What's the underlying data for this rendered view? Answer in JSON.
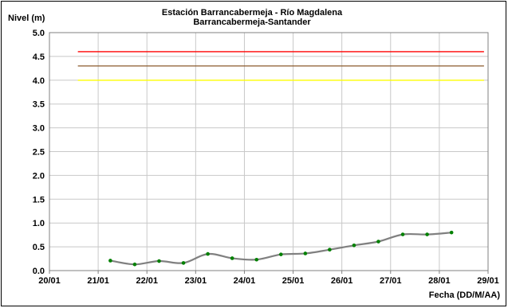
{
  "chart_data": {
    "type": "line",
    "title": "Estación Barrancabermeja - Río Magdalena",
    "subtitle": "Barrancabermeja-Santander",
    "ylabel": "Nivel (m)",
    "xlabel": "Fecha (DD/M/AA)",
    "ylim": [
      0,
      5
    ],
    "yticks": [
      "0.0",
      "0.5",
      "1.0",
      "1.5",
      "2.0",
      "2.5",
      "3.0",
      "3.5",
      "4.0",
      "4.5",
      "5.0"
    ],
    "xlim": [
      "20/01",
      "29/01"
    ],
    "xticks": [
      "20/01",
      "21/01",
      "22/01",
      "23/01",
      "24/01",
      "25/01",
      "26/01",
      "27/01",
      "28/01",
      "29/01"
    ],
    "grid": true,
    "series": [
      {
        "color": "#808080",
        "marker_color": "#008000",
        "x": [
          "21/01 06:00",
          "21/01 18:00",
          "22/01 06:00",
          "22/01 18:00",
          "23/01 06:00",
          "23/01 18:00",
          "24/01 06:00",
          "24/01 18:00",
          "25/01 06:00",
          "25/01 18:00",
          "26/01 06:00",
          "26/01 18:00",
          "27/01 06:00",
          "27/01 18:00",
          "28/01 06:00"
        ],
        "values": [
          0.21,
          0.13,
          0.2,
          0.16,
          0.35,
          0.26,
          0.23,
          0.34,
          0.36,
          0.44,
          0.53,
          0.61,
          0.76,
          0.76,
          0.8
        ]
      }
    ],
    "thresholds": [
      {
        "value": 4.6,
        "color": "#ff0000"
      },
      {
        "value": 4.3,
        "color": "#8b5a2b"
      },
      {
        "value": 4.0,
        "color": "#ffff00"
      }
    ],
    "threshold_x_range": [
      "20/01 14:00",
      "28/01 22:00"
    ]
  }
}
